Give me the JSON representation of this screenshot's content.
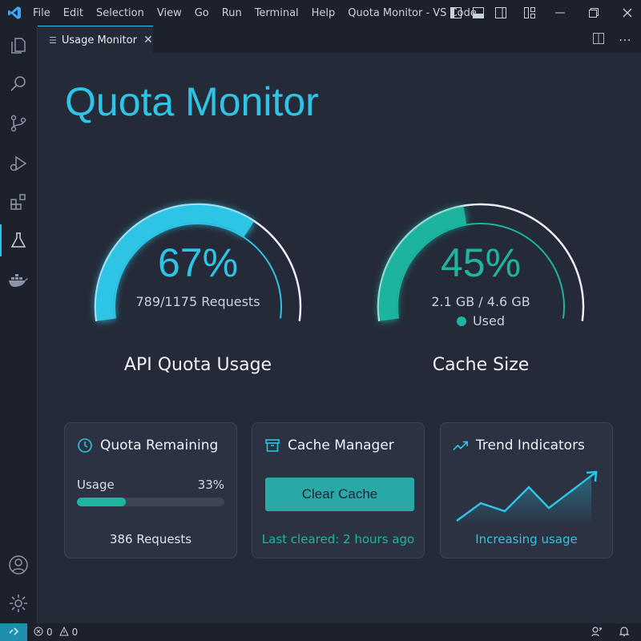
{
  "menu": [
    "File",
    "Edit",
    "Selection",
    "View",
    "Go",
    "Run",
    "Terminal",
    "Help"
  ],
  "window_title": "Quota Monitor - VS Code",
  "tab": {
    "label": "Usage Monitor",
    "close": "✕"
  },
  "page_title": "Quota Monitor",
  "colors": {
    "accent_blue": "#2ec4e6",
    "accent_green": "#1fb49f",
    "background": "#242a38"
  },
  "gauges": {
    "api": {
      "percent": 67,
      "percent_label": "67%",
      "detail": "789/1175 Requests",
      "caption": "API Quota Usage"
    },
    "cache": {
      "percent": 45,
      "percent_label": "45%",
      "detail": "2.1 GB / 4.6 GB",
      "legend": "Used",
      "caption": "Cache Size"
    }
  },
  "cards": {
    "quota": {
      "title": "Quota Remaining",
      "usage_label": "Usage",
      "usage_percent_label": "33%",
      "usage_percent": 33,
      "footer": "386 Requests"
    },
    "cache": {
      "title": "Cache Manager",
      "button": "Clear Cache",
      "footer": "Last cleared: 2 hours ago"
    },
    "trend": {
      "title": "Trend Indicators",
      "footer": "Increasing usage"
    }
  },
  "status": {
    "errors": "0",
    "warnings": "0"
  },
  "icons": [
    "vscode-logo-icon",
    "explorer-icon",
    "search-icon",
    "source-control-icon",
    "run-debug-icon",
    "extensions-icon",
    "testing-icon",
    "docker-icon",
    "account-icon",
    "settings-gear-icon",
    "clock-icon",
    "archive-box-icon",
    "trend-arrow-icon"
  ]
}
